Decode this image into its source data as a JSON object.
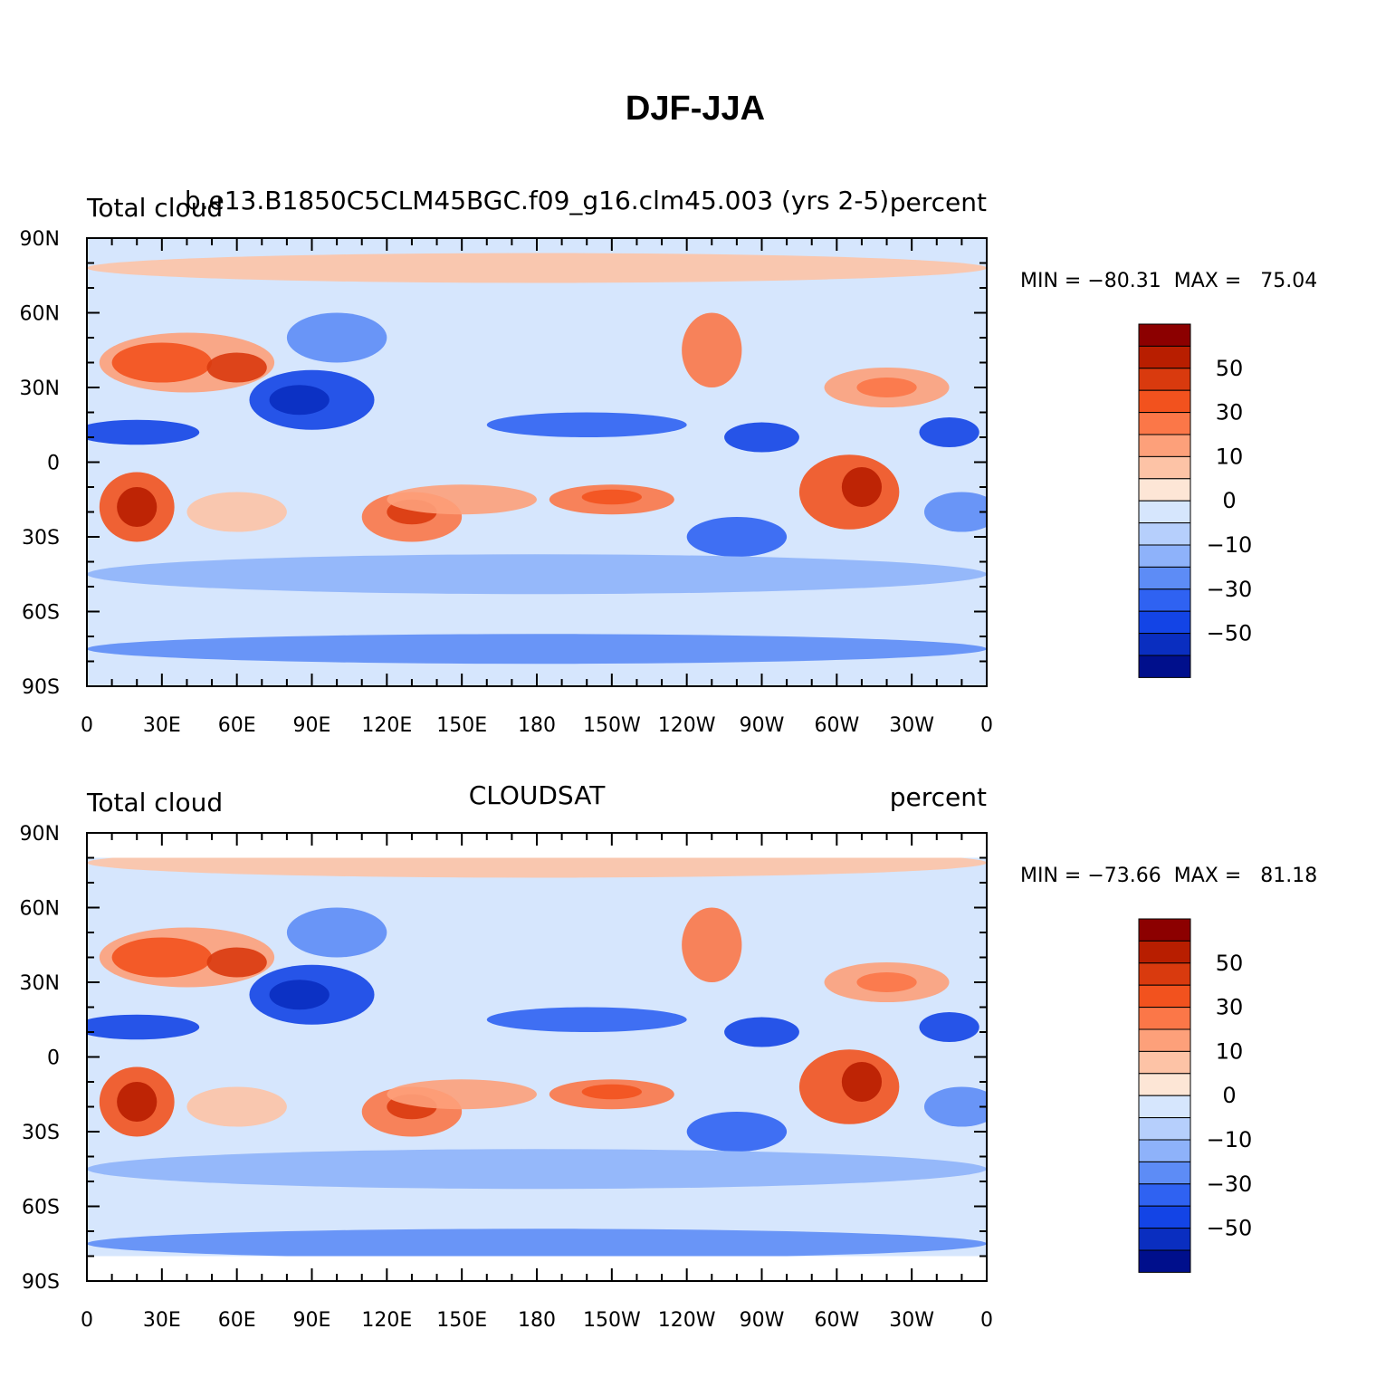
{
  "title": "DJF-JJA",
  "panels": [
    {
      "left": "Total cloud",
      "center": "b.e13.B1850C5CLM45BGC.f09_g16.clm45.003 (yrs 2-5)",
      "right": "percent",
      "minmax": "MIN = −80.31  MAX =   75.04"
    },
    {
      "left": "Total cloud",
      "center": "CLOUDSAT",
      "right": "percent",
      "minmax": "MIN = −73.66  MAX =   81.18"
    }
  ],
  "y_labels": [
    "90N",
    "60N",
    "30N",
    "0",
    "30S",
    "60S",
    "90S"
  ],
  "x_labels": [
    "0",
    "30E",
    "60E",
    "90E",
    "120E",
    "150E",
    "180",
    "150W",
    "120W",
    "90W",
    "60W",
    "30W",
    "0"
  ],
  "colorbar": {
    "colors": [
      "#8c0000",
      "#b81e00",
      "#d93a0e",
      "#f2521e",
      "#fb7748",
      "#fda07a",
      "#fdc3a6",
      "#fde6d6",
      "#d6e6fd",
      "#b6cffc",
      "#8eb2fa",
      "#5d8cf6",
      "#2f62f2",
      "#1344e6",
      "#0a2ec0",
      "#000f8c"
    ],
    "labels": [
      50,
      30,
      10,
      0,
      {
        "value": -10,
        "label": "−10"
      },
      {
        "value": -30,
        "label": "−30"
      },
      {
        "value": -50,
        "label": "−50"
      }
    ]
  }
}
